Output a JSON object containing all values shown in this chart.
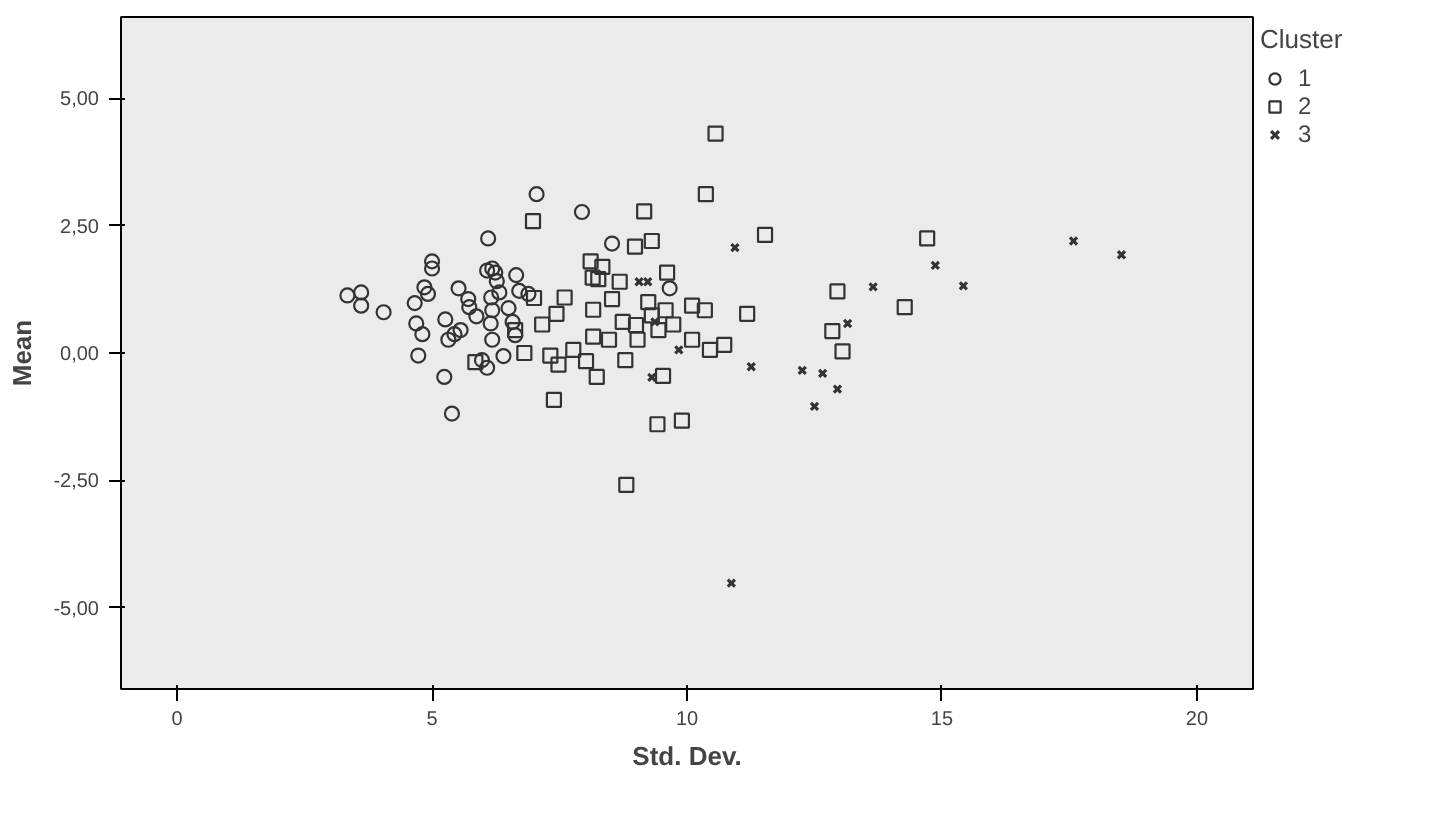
{
  "chart_data": {
    "type": "scatter",
    "xlabel": "Std. Dev.",
    "ylabel": "Mean",
    "legend_title": "Cluster",
    "legend": "right",
    "grid": false,
    "xlim": [
      -1.1,
      21.1
    ],
    "ylim": [
      -6.6,
      6.6
    ],
    "xticks": [
      0,
      5,
      10,
      15,
      20
    ],
    "yticks": [
      {
        "value": -5,
        "label": "-5,00"
      },
      {
        "value": -2.5,
        "label": "-2,50"
      },
      {
        "value": 0,
        "label": "0,00"
      },
      {
        "value": 2.5,
        "label": "2,50"
      },
      {
        "value": 5,
        "label": "5,00"
      }
    ],
    "series": [
      {
        "name": "1",
        "color": "#333333",
        "marker": "circle",
        "x": [
          3.34,
          3.61,
          3.61,
          4.05,
          5.0,
          5.0,
          4.85,
          4.92,
          4.66,
          4.69,
          4.81,
          4.73,
          5.24,
          5.39,
          5.26,
          5.32,
          5.44,
          5.56,
          5.52,
          5.71,
          5.73,
          5.87,
          5.98,
          6.08,
          6.1,
          6.08,
          6.18,
          6.24,
          6.27,
          6.16,
          6.18,
          6.15,
          6.18,
          6.32,
          6.4,
          6.5,
          6.58,
          6.65,
          6.71,
          6.63,
          6.89,
          7.05,
          7.94,
          8.53,
          9.66
        ],
        "values": [
          1.13,
          1.19,
          0.93,
          0.8,
          1.8,
          1.66,
          1.29,
          1.16,
          0.98,
          0.58,
          0.37,
          -0.05,
          -0.47,
          -1.19,
          0.66,
          0.26,
          0.37,
          0.45,
          1.27,
          1.06,
          0.9,
          0.72,
          -0.14,
          -0.29,
          2.25,
          1.62,
          1.66,
          1.58,
          1.41,
          1.09,
          0.84,
          0.58,
          0.26,
          1.19,
          -0.06,
          0.88,
          0.61,
          1.53,
          1.22,
          0.35,
          1.16,
          3.12,
          2.77,
          2.15,
          1.27
        ]
      },
      {
        "name": "2",
        "color": "#333333",
        "marker": "square",
        "x": [
          10.56,
          10.37,
          6.98,
          9.16,
          9.31,
          8.98,
          11.53,
          14.71,
          12.95,
          14.27,
          12.85,
          13.05,
          11.18,
          10.73,
          10.45,
          10.1,
          10.35,
          10.1,
          9.9,
          9.42,
          8.81,
          7.39,
          8.23,
          9.53,
          8.79,
          8.11,
          8.15,
          8.34,
          8.26,
          9.61,
          8.68,
          7.6,
          7.0,
          7.44,
          7.16,
          6.81,
          7.32,
          7.48,
          7.77,
          8.02,
          5.85,
          8.16,
          8.47,
          8.53,
          8.74,
          9.03,
          9.24,
          9.31,
          9.44,
          9.73,
          9.58,
          6.63,
          8.16,
          9.0
        ],
        "values": [
          4.31,
          3.12,
          2.59,
          2.78,
          2.2,
          2.09,
          2.32,
          2.25,
          1.21,
          0.9,
          0.43,
          0.03,
          0.77,
          0.16,
          0.06,
          0.26,
          0.84,
          0.93,
          -1.33,
          -1.4,
          -2.59,
          -0.92,
          -0.47,
          -0.45,
          -0.14,
          1.8,
          1.48,
          1.69,
          1.45,
          1.58,
          1.4,
          1.09,
          1.08,
          0.77,
          0.56,
          0.0,
          -0.05,
          -0.23,
          0.06,
          -0.16,
          -0.18,
          0.32,
          0.26,
          1.06,
          0.61,
          0.26,
          1.0,
          0.74,
          0.45,
          0.56,
          0.84,
          0.45,
          0.85,
          0.55
        ]
      },
      {
        "name": "3",
        "color": "#333333",
        "marker": "cross",
        "x": [
          17.58,
          18.52,
          14.87,
          15.42,
          13.65,
          10.94,
          13.15,
          11.26,
          12.26,
          12.66,
          12.95,
          12.5,
          10.87,
          9.84,
          9.31,
          9.06,
          9.23,
          9.37
        ],
        "values": [
          2.2,
          1.93,
          1.72,
          1.32,
          1.3,
          2.07,
          0.58,
          -0.27,
          -0.34,
          -0.4,
          -0.71,
          -1.05,
          -4.52,
          0.06,
          -0.48,
          1.4,
          1.4,
          0.61
        ]
      }
    ]
  }
}
